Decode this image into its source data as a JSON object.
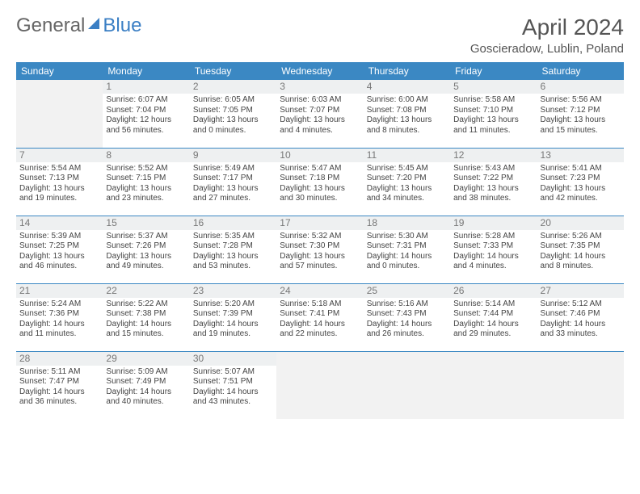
{
  "logo": {
    "general": "General",
    "blue": "Blue"
  },
  "title": "April 2024",
  "location": "Goscieradow, Lublin, Poland",
  "day_headers": [
    "Sunday",
    "Monday",
    "Tuesday",
    "Wednesday",
    "Thursday",
    "Friday",
    "Saturday"
  ],
  "colors": {
    "header_bg": "#3b88c3",
    "header_fg": "#ffffff",
    "accent": "#3b7fc4",
    "daynum_bg": "#eef0f1",
    "empty_bg": "#f2f2f2",
    "text": "#444444"
  },
  "first_weekday_index": 1,
  "days": [
    {
      "n": 1,
      "sr": "6:07 AM",
      "ss": "7:04 PM",
      "dl": "12 hours and 56 minutes."
    },
    {
      "n": 2,
      "sr": "6:05 AM",
      "ss": "7:05 PM",
      "dl": "13 hours and 0 minutes."
    },
    {
      "n": 3,
      "sr": "6:03 AM",
      "ss": "7:07 PM",
      "dl": "13 hours and 4 minutes."
    },
    {
      "n": 4,
      "sr": "6:00 AM",
      "ss": "7:08 PM",
      "dl": "13 hours and 8 minutes."
    },
    {
      "n": 5,
      "sr": "5:58 AM",
      "ss": "7:10 PM",
      "dl": "13 hours and 11 minutes."
    },
    {
      "n": 6,
      "sr": "5:56 AM",
      "ss": "7:12 PM",
      "dl": "13 hours and 15 minutes."
    },
    {
      "n": 7,
      "sr": "5:54 AM",
      "ss": "7:13 PM",
      "dl": "13 hours and 19 minutes."
    },
    {
      "n": 8,
      "sr": "5:52 AM",
      "ss": "7:15 PM",
      "dl": "13 hours and 23 minutes."
    },
    {
      "n": 9,
      "sr": "5:49 AM",
      "ss": "7:17 PM",
      "dl": "13 hours and 27 minutes."
    },
    {
      "n": 10,
      "sr": "5:47 AM",
      "ss": "7:18 PM",
      "dl": "13 hours and 30 minutes."
    },
    {
      "n": 11,
      "sr": "5:45 AM",
      "ss": "7:20 PM",
      "dl": "13 hours and 34 minutes."
    },
    {
      "n": 12,
      "sr": "5:43 AM",
      "ss": "7:22 PM",
      "dl": "13 hours and 38 minutes."
    },
    {
      "n": 13,
      "sr": "5:41 AM",
      "ss": "7:23 PM",
      "dl": "13 hours and 42 minutes."
    },
    {
      "n": 14,
      "sr": "5:39 AM",
      "ss": "7:25 PM",
      "dl": "13 hours and 46 minutes."
    },
    {
      "n": 15,
      "sr": "5:37 AM",
      "ss": "7:26 PM",
      "dl": "13 hours and 49 minutes."
    },
    {
      "n": 16,
      "sr": "5:35 AM",
      "ss": "7:28 PM",
      "dl": "13 hours and 53 minutes."
    },
    {
      "n": 17,
      "sr": "5:32 AM",
      "ss": "7:30 PM",
      "dl": "13 hours and 57 minutes."
    },
    {
      "n": 18,
      "sr": "5:30 AM",
      "ss": "7:31 PM",
      "dl": "14 hours and 0 minutes."
    },
    {
      "n": 19,
      "sr": "5:28 AM",
      "ss": "7:33 PM",
      "dl": "14 hours and 4 minutes."
    },
    {
      "n": 20,
      "sr": "5:26 AM",
      "ss": "7:35 PM",
      "dl": "14 hours and 8 minutes."
    },
    {
      "n": 21,
      "sr": "5:24 AM",
      "ss": "7:36 PM",
      "dl": "14 hours and 11 minutes."
    },
    {
      "n": 22,
      "sr": "5:22 AM",
      "ss": "7:38 PM",
      "dl": "14 hours and 15 minutes."
    },
    {
      "n": 23,
      "sr": "5:20 AM",
      "ss": "7:39 PM",
      "dl": "14 hours and 19 minutes."
    },
    {
      "n": 24,
      "sr": "5:18 AM",
      "ss": "7:41 PM",
      "dl": "14 hours and 22 minutes."
    },
    {
      "n": 25,
      "sr": "5:16 AM",
      "ss": "7:43 PM",
      "dl": "14 hours and 26 minutes."
    },
    {
      "n": 26,
      "sr": "5:14 AM",
      "ss": "7:44 PM",
      "dl": "14 hours and 29 minutes."
    },
    {
      "n": 27,
      "sr": "5:12 AM",
      "ss": "7:46 PM",
      "dl": "14 hours and 33 minutes."
    },
    {
      "n": 28,
      "sr": "5:11 AM",
      "ss": "7:47 PM",
      "dl": "14 hours and 36 minutes."
    },
    {
      "n": 29,
      "sr": "5:09 AM",
      "ss": "7:49 PM",
      "dl": "14 hours and 40 minutes."
    },
    {
      "n": 30,
      "sr": "5:07 AM",
      "ss": "7:51 PM",
      "dl": "14 hours and 43 minutes."
    }
  ],
  "labels": {
    "sunrise": "Sunrise:",
    "sunset": "Sunset:",
    "daylight": "Daylight:"
  }
}
